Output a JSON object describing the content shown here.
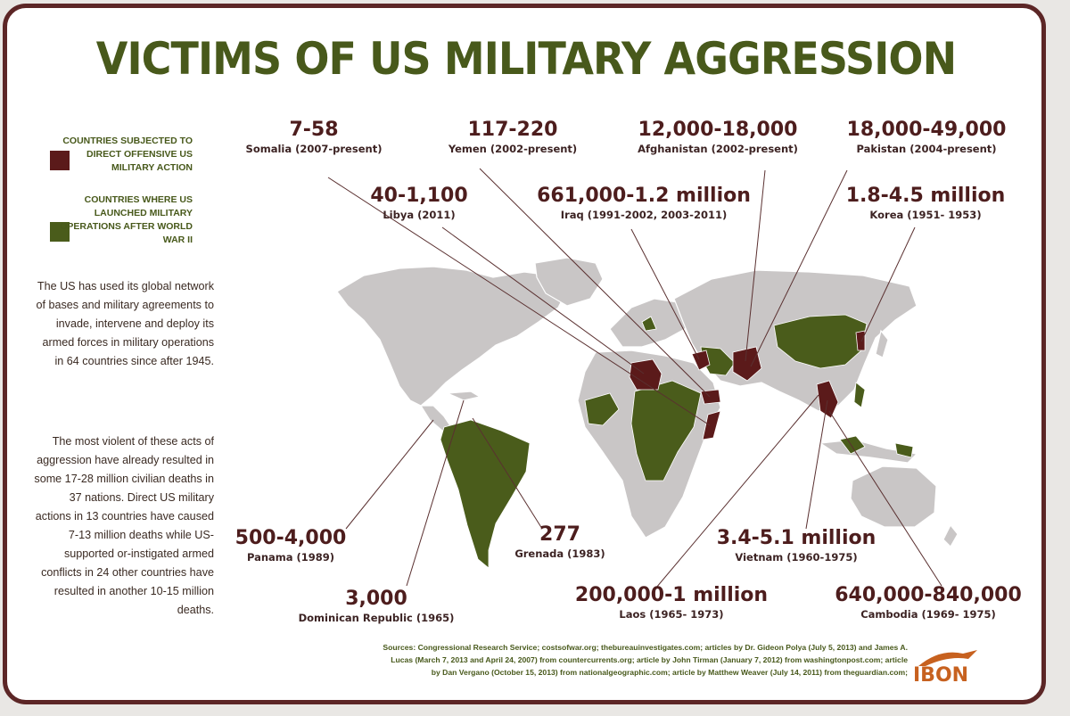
{
  "title": "VICTIMS OF US MILITARY AGGRESSION",
  "legend": [
    {
      "label": "COUNTRIES SUBJECTED TO DIRECT OFFENSIVE US MILITARY ACTION",
      "color": "#5b1a1a"
    },
    {
      "label": "COUNTRIES WHERE US LAUNCHED MILITARY OPERATIONS AFTER WORLD WAR II",
      "color": "#4a5c1b"
    }
  ],
  "intro_text": "The US has used its global network of bases and military agreements to invade, intervene and deploy its armed forces in military operations in 64 countries since after 1945.",
  "stats_text": "The most violent of these acts of aggression have already resulted in some 17-28 million civilian deaths in 37 nations. Direct US military actions in 13 countries have caused 7-13 million deaths while US-supported or-instigated armed conflicts in 24 other countries have resulted in another 10-15 million deaths.",
  "casualties": [
    {
      "value": "7-58",
      "country": "Somalia (2007-present)"
    },
    {
      "value": "117-220",
      "country": "Yemen (2002-present)"
    },
    {
      "value": "12,000-18,000",
      "country": "Afghanistan (2002-present)"
    },
    {
      "value": "18,000-49,000",
      "country": "Pakistan (2004-present)"
    },
    {
      "value": "40-1,100",
      "country": "Libya (2011)"
    },
    {
      "value": "661,000-1.2 million",
      "country": "Iraq (1991-2002, 2003-2011)"
    },
    {
      "value": "1.8-4.5 million",
      "country": "Korea (1951- 1953)"
    },
    {
      "value": "500-4,000",
      "country": "Panama (1989)"
    },
    {
      "value": "277",
      "country": "Grenada (1983)"
    },
    {
      "value": "3.4-5.1 million",
      "country": "Vietnam (1960-1975)"
    },
    {
      "value": "3,000",
      "country": "Dominican Republic (1965)"
    },
    {
      "value": "200,000-1 million",
      "country": "Laos (1965- 1973)"
    },
    {
      "value": "640,000-840,000",
      "country": "Cambodia (1969- 1975)"
    }
  ],
  "sources": "Sources: Congressional Research Service; costsofwar.org; thebureauinvestigates.com; articles by Dr. Gideon Polya (July 5, 2013) and James A. Lucas (March 7, 2013 and April 24, 2007) from countercurrents.org; article by John Tirman (January 7, 2012) from washingtonpost.com; article by Dan Vergano (October 15, 2013) from nationalgeographic.com; article by Matthew Weaver (July 14, 2011) from theguardian.com;",
  "logo": {
    "text": "IBON",
    "color": "#c7611f"
  },
  "colors": {
    "frame": "#5c2626",
    "title": "#48591b",
    "land": "#c9c6c6",
    "operations": "#4a5c1b",
    "direct_action": "#5b1a1a",
    "leader_line": "#5a3030"
  }
}
